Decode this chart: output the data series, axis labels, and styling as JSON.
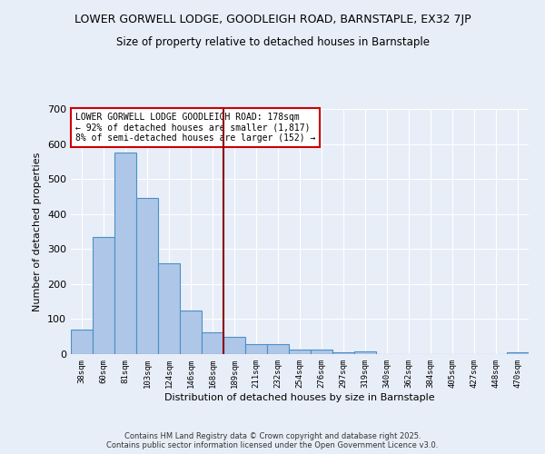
{
  "title_line1": "LOWER GORWELL LODGE, GOODLEIGH ROAD, BARNSTAPLE, EX32 7JP",
  "title_line2": "Size of property relative to detached houses in Barnstaple",
  "xlabel": "Distribution of detached houses by size in Barnstaple",
  "ylabel": "Number of detached properties",
  "bin_labels": [
    "38sqm",
    "60sqm",
    "81sqm",
    "103sqm",
    "124sqm",
    "146sqm",
    "168sqm",
    "189sqm",
    "211sqm",
    "232sqm",
    "254sqm",
    "276sqm",
    "297sqm",
    "319sqm",
    "340sqm",
    "362sqm",
    "384sqm",
    "405sqm",
    "427sqm",
    "448sqm",
    "470sqm"
  ],
  "bar_heights": [
    70,
    335,
    575,
    445,
    260,
    125,
    62,
    50,
    28,
    28,
    13,
    13,
    4,
    7,
    0,
    0,
    0,
    0,
    0,
    0,
    5
  ],
  "bar_color": "#aec6e8",
  "bar_edge_color": "#4a90c4",
  "vline_x": 6.5,
  "vline_color": "#8b0000",
  "annotation_title": "LOWER GORWELL LODGE GOODLEIGH ROAD: 178sqm",
  "annotation_line2": "← 92% of detached houses are smaller (1,817)",
  "annotation_line3": "8% of semi-detached houses are larger (152) →",
  "annotation_box_color": "#ffffff",
  "annotation_box_edge": "#cc0000",
  "background_color": "#e8eef8",
  "grid_color": "#ffffff",
  "ylim": [
    0,
    700
  ],
  "yticks": [
    0,
    100,
    200,
    300,
    400,
    500,
    600,
    700
  ],
  "footer_line1": "Contains HM Land Registry data © Crown copyright and database right 2025.",
  "footer_line2": "Contains public sector information licensed under the Open Government Licence v3.0."
}
